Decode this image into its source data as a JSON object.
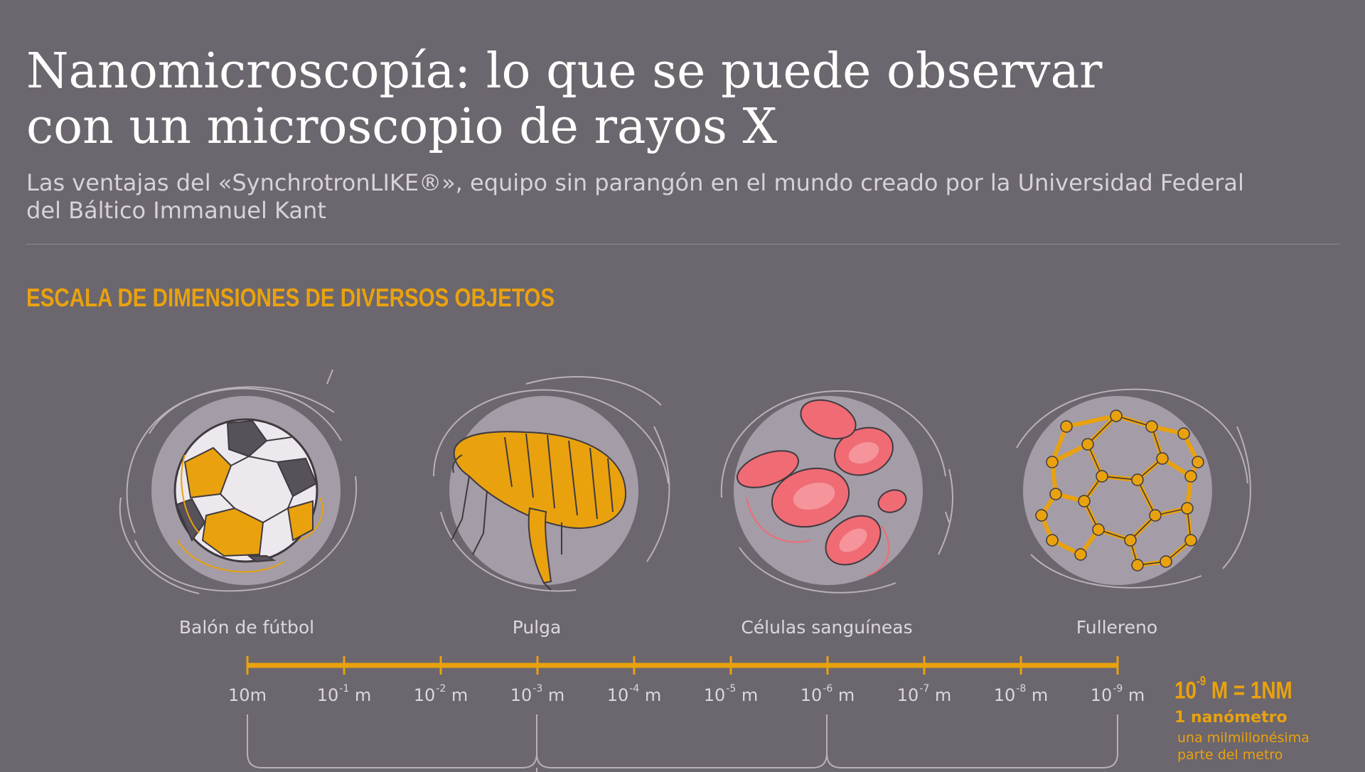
{
  "header": {
    "title_line1": "Nanomicroscopía: lo que se puede observar",
    "title_line2": "con un microscopio de rayos X",
    "subtitle_line1": "Las ventajas del «SynchrotronLIKE®», equipo sin parangón en el mundo creado por la Universidad Federal",
    "subtitle_line2": "del Báltico Immanuel Kant"
  },
  "section": {
    "heading": "ESCALA DE DIMENSIONES DE DIVERSOS OBJETOS"
  },
  "objects": [
    {
      "label": "Balón de fútbol",
      "icon": "soccer-ball-icon"
    },
    {
      "label": "Pulga",
      "icon": "flea-icon"
    },
    {
      "label": "Células sanguíneas",
      "icon": "blood-cells-icon"
    },
    {
      "label": "Fullereno",
      "icon": "fullerene-icon"
    }
  ],
  "scale": {
    "ticks": [
      {
        "base": "10m",
        "exp": ""
      },
      {
        "base": "10 m",
        "exp": "-1"
      },
      {
        "base": "10 m",
        "exp": "-2"
      },
      {
        "base": "10 m",
        "exp": "-3"
      },
      {
        "base": "10 m",
        "exp": "-4"
      },
      {
        "base": "10 m",
        "exp": "-5"
      },
      {
        "base": "10 m",
        "exp": "-6"
      },
      {
        "base": "10 m",
        "exp": "-7"
      },
      {
        "base": "10 m",
        "exp": "-8"
      },
      {
        "base": "10 m",
        "exp": "-9"
      }
    ]
  },
  "definition": {
    "base": "10",
    "exp": "-9",
    "rest": "M = 1NM",
    "name": "1 nanómetro",
    "desc_line1": "una milmillonésima",
    "desc_line2": "parte del metro"
  },
  "colors": {
    "background": "#6c666e",
    "accent": "#e9a20e",
    "circle": "#a49ca6",
    "blood": "#f06b74"
  }
}
